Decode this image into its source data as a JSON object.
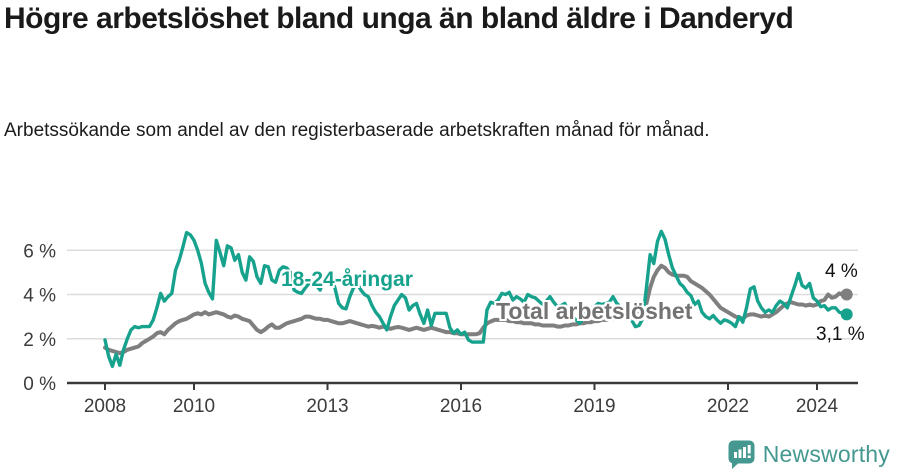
{
  "title": {
    "text": "Högre arbetslöshet bland unga än bland äldre i Danderyd"
  },
  "subtitle": {
    "text": "Arbetssökande som andel av den registerbaserade arbetskraften månad för månad."
  },
  "footer": {
    "brand": "Newsworthy",
    "brand_color": "#44988f",
    "logo_icon": "newsworthy-bar-chart-bubble-icon"
  },
  "colors": {
    "youth_line": "#17a28e",
    "total_line": "#7f7f7f",
    "gridline": "#dcdcdc",
    "axis": "#3a3a3a"
  },
  "chart_data": {
    "type": "line",
    "title": "Högre arbetslöshet bland unga än bland äldre i Danderyd",
    "xlabel": "",
    "ylabel": "Arbetssökande som andel av den registerbaserade arbetskraften",
    "x_unit": "month",
    "x_start": "2008-01",
    "x_end": "2024-09",
    "ylim": [
      0,
      7.2
    ],
    "grid": "horizontal",
    "legend_position": "inline-labels",
    "y_ticks": [
      {
        "value": 0,
        "label": "0 %"
      },
      {
        "value": 2,
        "label": "2 %"
      },
      {
        "value": 4,
        "label": "4 %"
      },
      {
        "value": 6,
        "label": "6 %"
      }
    ],
    "x_ticks": [
      {
        "year": 2008,
        "label": "2008"
      },
      {
        "year": 2010,
        "label": "2010"
      },
      {
        "year": 2013,
        "label": "2013"
      },
      {
        "year": 2016,
        "label": "2016"
      },
      {
        "year": 2019,
        "label": "2019"
      },
      {
        "year": 2022,
        "label": "2022"
      },
      {
        "year": 2024,
        "label": "2024"
      }
    ],
    "series": [
      {
        "name": "Total arbetslöshet",
        "color": "#7f7f7f",
        "end_label": "4 %",
        "end_value": 4.0,
        "values": [
          1.6,
          1.5,
          1.45,
          1.4,
          1.35,
          1.4,
          1.5,
          1.55,
          1.6,
          1.65,
          1.8,
          1.9,
          2.0,
          2.1,
          2.25,
          2.3,
          2.2,
          2.4,
          2.55,
          2.7,
          2.8,
          2.85,
          2.9,
          3.0,
          3.1,
          3.15,
          3.1,
          3.2,
          3.1,
          3.15,
          3.2,
          3.15,
          3.1,
          3.0,
          2.95,
          3.05,
          3.0,
          2.9,
          2.85,
          2.8,
          2.6,
          2.4,
          2.3,
          2.4,
          2.55,
          2.65,
          2.5,
          2.5,
          2.6,
          2.7,
          2.75,
          2.8,
          2.85,
          2.9,
          3.0,
          3.0,
          2.95,
          2.9,
          2.9,
          2.85,
          2.85,
          2.8,
          2.75,
          2.7,
          2.7,
          2.75,
          2.8,
          2.75,
          2.7,
          2.65,
          2.6,
          2.55,
          2.58,
          2.55,
          2.5,
          2.55,
          2.5,
          2.45,
          2.5,
          2.53,
          2.5,
          2.45,
          2.4,
          2.45,
          2.5,
          2.45,
          2.4,
          2.45,
          2.5,
          2.45,
          2.4,
          2.35,
          2.3,
          2.3,
          2.25,
          2.25,
          2.2,
          2.2,
          2.2,
          2.2,
          2.2,
          2.25,
          2.5,
          2.7,
          2.78,
          2.85,
          2.85,
          2.85,
          2.85,
          2.8,
          2.8,
          2.75,
          2.75,
          2.7,
          2.7,
          2.7,
          2.65,
          2.65,
          2.6,
          2.6,
          2.6,
          2.6,
          2.55,
          2.55,
          2.6,
          2.6,
          2.65,
          2.65,
          2.7,
          2.7,
          2.75,
          2.75,
          2.8,
          2.8,
          2.85,
          2.85,
          2.9,
          2.9,
          2.95,
          2.95,
          3.0,
          3.0,
          3.05,
          3.1,
          3.2,
          3.3,
          3.6,
          4.3,
          4.8,
          5.1,
          5.3,
          5.2,
          5.0,
          4.9,
          4.85,
          4.85,
          4.85,
          4.8,
          4.6,
          4.5,
          4.4,
          4.3,
          4.15,
          4.0,
          3.8,
          3.6,
          3.4,
          3.3,
          3.2,
          3.1,
          3.0,
          2.95,
          2.9,
          3.05,
          3.1,
          3.1,
          3.05,
          3.0,
          3.05,
          3.0,
          3.1,
          3.2,
          3.35,
          3.5,
          3.6,
          3.65,
          3.6,
          3.55,
          3.55,
          3.5,
          3.55,
          3.5,
          3.55,
          3.7,
          3.75,
          4.0,
          3.85,
          3.9,
          4.05,
          4.0,
          4.0
        ]
      },
      {
        "name": "18-24-åringar",
        "color": "#17a28e",
        "end_label": "3,1 %",
        "end_value": 3.1,
        "values": [
          1.95,
          1.2,
          0.75,
          1.3,
          0.8,
          1.5,
          2.0,
          2.4,
          2.55,
          2.5,
          2.55,
          2.55,
          2.55,
          2.85,
          3.4,
          4.05,
          3.7,
          3.9,
          4.05,
          5.1,
          5.55,
          6.15,
          6.8,
          6.7,
          6.45,
          6.0,
          5.4,
          4.5,
          4.1,
          3.8,
          6.45,
          5.9,
          5.3,
          6.2,
          6.1,
          5.55,
          5.8,
          5.0,
          4.65,
          5.7,
          5.5,
          4.8,
          4.5,
          5.3,
          5.25,
          4.65,
          4.55,
          5.1,
          5.25,
          5.2,
          5.0,
          4.2,
          4.1,
          4.05,
          4.3,
          4.5,
          4.65,
          4.4,
          4.2,
          4.65,
          4.8,
          4.9,
          4.3,
          3.6,
          3.4,
          3.35,
          3.9,
          4.3,
          4.5,
          4.2,
          4.0,
          3.9,
          3.5,
          3.2,
          3.0,
          2.7,
          2.4,
          3.0,
          3.5,
          3.75,
          4.0,
          3.85,
          3.3,
          3.5,
          3.6,
          3.1,
          2.7,
          3.3,
          2.6,
          3.15,
          3.15,
          3.15,
          3.15,
          2.5,
          2.25,
          2.4,
          2.2,
          2.3,
          1.95,
          1.85,
          1.85,
          1.85,
          1.85,
          3.3,
          3.65,
          3.6,
          3.75,
          4.05,
          4.0,
          4.1,
          3.75,
          3.9,
          3.8,
          3.65,
          4.0,
          3.9,
          3.85,
          3.7,
          3.55,
          3.7,
          3.9,
          3.65,
          3.45,
          3.5,
          3.6,
          3.2,
          3.0,
          2.85,
          2.7,
          2.95,
          3.3,
          3.4,
          3.45,
          3.6,
          3.55,
          3.6,
          3.65,
          3.9,
          3.6,
          3.45,
          3.3,
          3.2,
          2.85,
          2.55,
          2.6,
          2.9,
          4.3,
          5.8,
          5.4,
          6.4,
          6.85,
          6.5,
          5.8,
          5.2,
          4.85,
          4.5,
          4.35,
          4.1,
          3.95,
          3.55,
          3.7,
          3.2,
          3.0,
          2.9,
          3.05,
          2.85,
          2.7,
          2.85,
          2.8,
          2.7,
          2.55,
          3.0,
          2.75,
          3.4,
          4.25,
          4.35,
          3.7,
          3.4,
          3.2,
          3.3,
          3.2,
          3.5,
          3.7,
          3.6,
          3.4,
          3.9,
          4.4,
          4.95,
          4.4,
          4.3,
          4.5,
          3.85,
          3.7,
          3.45,
          3.5,
          3.3,
          3.4,
          3.4,
          3.2,
          3.15,
          3.1
        ]
      }
    ]
  }
}
